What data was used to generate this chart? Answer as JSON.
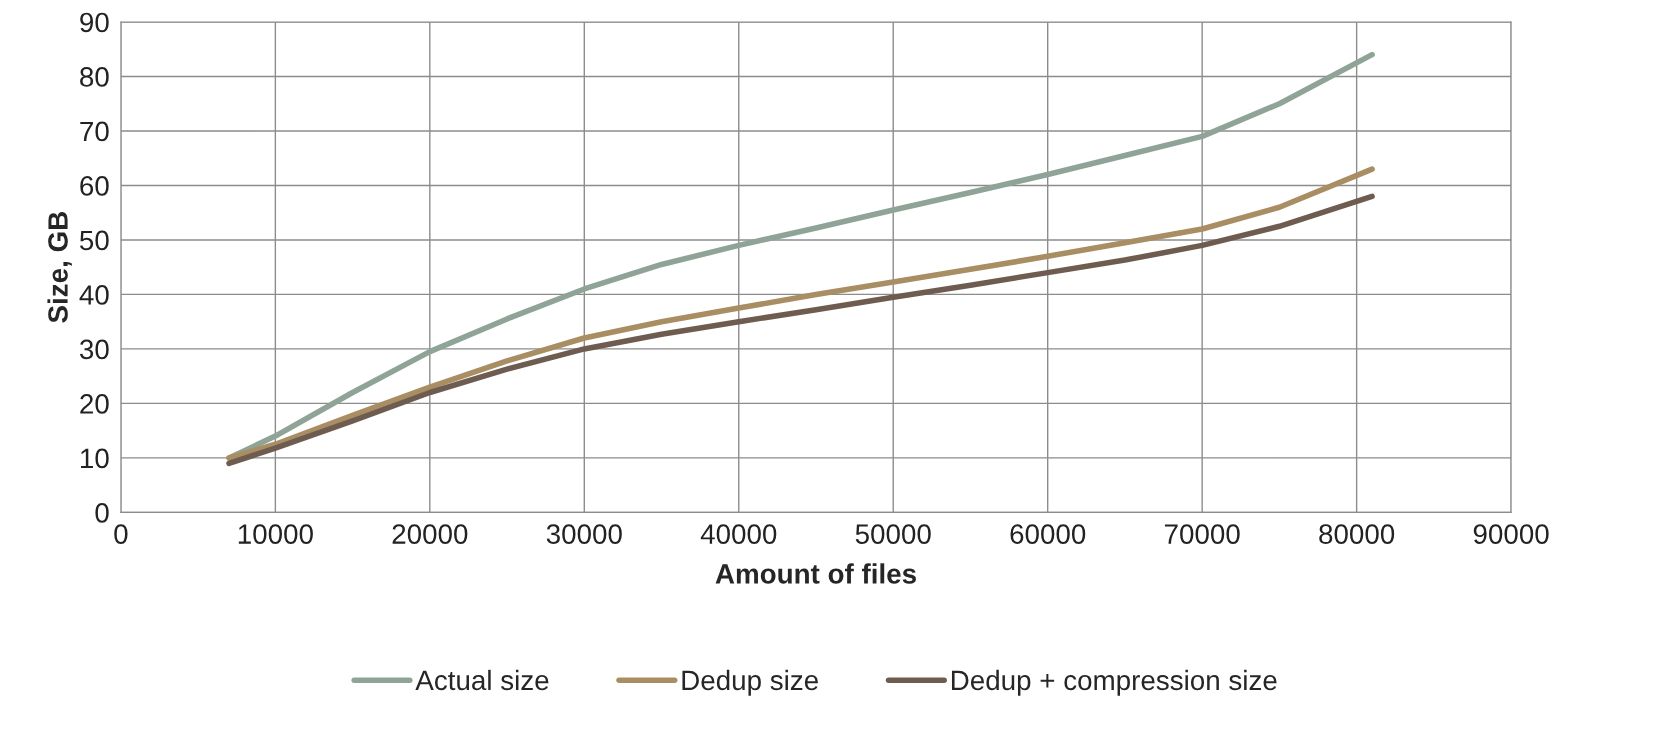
{
  "chart_data": {
    "type": "line",
    "xlabel": "Amount of files",
    "ylabel": "Size, GB",
    "x": [
      7000,
      10000,
      15000,
      20000,
      25000,
      30000,
      35000,
      40000,
      45000,
      50000,
      55000,
      60000,
      65000,
      70000,
      75000,
      81000
    ],
    "series": [
      {
        "name": "Actual size",
        "color": "#8fa497",
        "values": [
          10,
          14,
          22,
          29.5,
          35.5,
          41,
          45.5,
          49,
          52.2,
          55.5,
          58.7,
          62,
          65.5,
          69,
          75,
          84
        ]
      },
      {
        "name": "Dedup size",
        "color": "#a98e64",
        "values": [
          10,
          12.5,
          17.8,
          23,
          27.8,
          32,
          35,
          37.5,
          40,
          42.3,
          44.6,
          47,
          49.5,
          52,
          56,
          63
        ]
      },
      {
        "name": "Dedup + compression size",
        "color": "#6f5c50",
        "values": [
          9,
          11.8,
          16.8,
          22,
          26.3,
          30,
          32.7,
          35,
          37.2,
          39.5,
          41.7,
          44,
          46.3,
          49,
          52.5,
          58
        ]
      }
    ],
    "xlim": [
      0,
      90000
    ],
    "xticks": [
      0,
      10000,
      20000,
      30000,
      40000,
      50000,
      60000,
      70000,
      80000,
      90000
    ],
    "ylim": [
      0,
      90
    ],
    "yticks": [
      0,
      10,
      20,
      30,
      40,
      50,
      60,
      70,
      80,
      90
    ],
    "grid": true,
    "legend": "bottom",
    "marker": "none",
    "line_style": "solid"
  }
}
